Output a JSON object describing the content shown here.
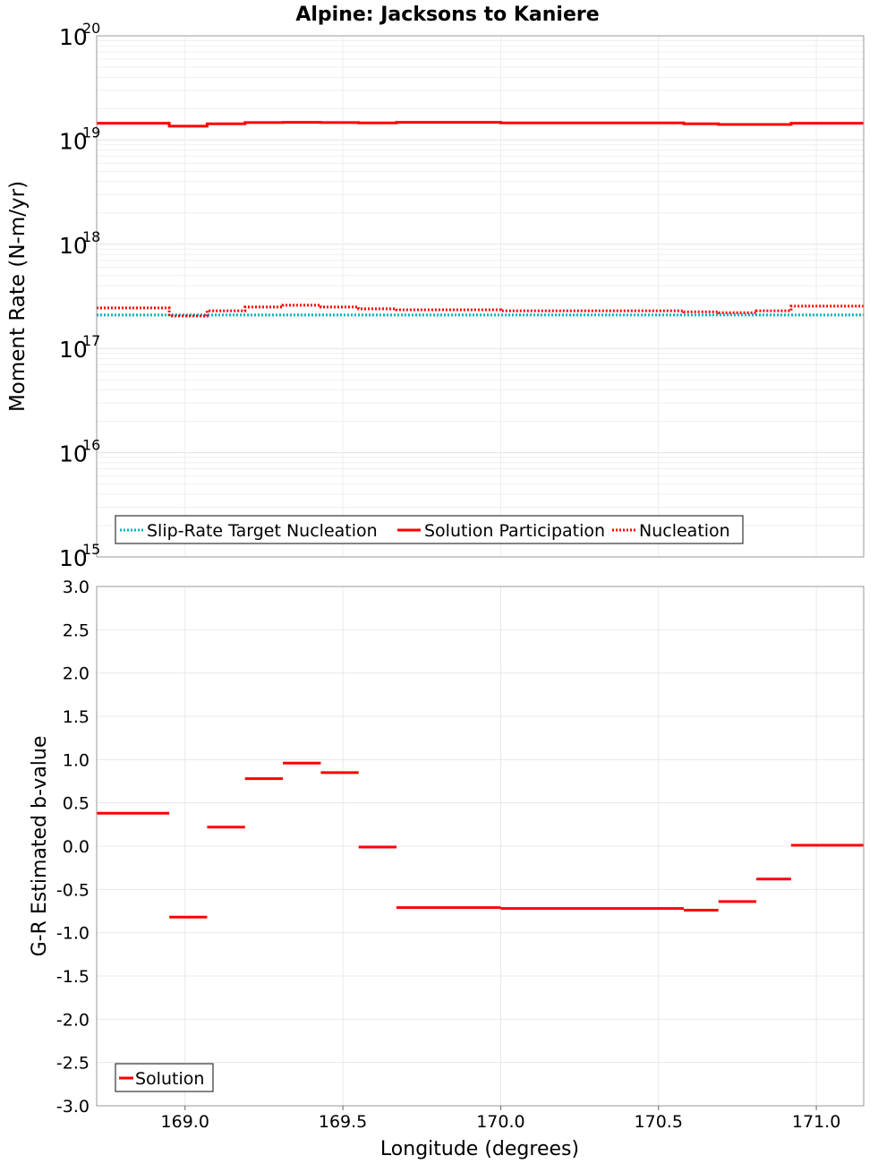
{
  "chart_data": [
    {
      "type": "line",
      "title": "Alpine: Jacksons to Kaniere",
      "xlabel": "",
      "ylabel": "Moment Rate (N-m/yr)",
      "yscale": "log",
      "ylim": [
        1000000000000000.0,
        1e+20
      ],
      "xlim": [
        168.72,
        171.15
      ],
      "y_tick_exponents": [
        "15",
        "16",
        "17",
        "18",
        "19",
        "20"
      ],
      "y_tick_base": "10",
      "grid": true,
      "legend_position": "bottom-left",
      "series": [
        {
          "name": "Slip-Rate Target Nucleation",
          "color": "#00b4c4",
          "style": "dotted",
          "segments": [
            {
              "x0": 168.72,
              "x1": 171.15,
              "y": 2.1e+17
            }
          ]
        },
        {
          "name": "Solution Participation",
          "color": "#ff0000",
          "style": "solid",
          "segments": [
            {
              "x0": 168.72,
              "x1": 168.95,
              "y": 1.45e+19
            },
            {
              "x0": 168.95,
              "x1": 169.07,
              "y": 1.36e+19
            },
            {
              "x0": 169.07,
              "x1": 169.19,
              "y": 1.43e+19
            },
            {
              "x0": 169.19,
              "x1": 169.31,
              "y": 1.47e+19
            },
            {
              "x0": 169.31,
              "x1": 169.43,
              "y": 1.48e+19
            },
            {
              "x0": 169.43,
              "x1": 169.55,
              "y": 1.47e+19
            },
            {
              "x0": 169.55,
              "x1": 169.67,
              "y": 1.46e+19
            },
            {
              "x0": 169.67,
              "x1": 170.0,
              "y": 1.48e+19
            },
            {
              "x0": 170.0,
              "x1": 170.58,
              "y": 1.46e+19
            },
            {
              "x0": 170.58,
              "x1": 170.69,
              "y": 1.43e+19
            },
            {
              "x0": 170.69,
              "x1": 170.92,
              "y": 1.41e+19
            },
            {
              "x0": 170.92,
              "x1": 171.15,
              "y": 1.45e+19
            }
          ]
        },
        {
          "name": "Nucleation",
          "color": "#ff0000",
          "style": "dotted",
          "segments": [
            {
              "x0": 168.72,
              "x1": 168.95,
              "y": 2.45e+17
            },
            {
              "x0": 168.95,
              "x1": 169.07,
              "y": 2.05e+17
            },
            {
              "x0": 169.07,
              "x1": 169.19,
              "y": 2.3e+17
            },
            {
              "x0": 169.19,
              "x1": 169.31,
              "y": 2.5e+17
            },
            {
              "x0": 169.31,
              "x1": 169.43,
              "y": 2.6e+17
            },
            {
              "x0": 169.43,
              "x1": 169.55,
              "y": 2.5e+17
            },
            {
              "x0": 169.55,
              "x1": 169.67,
              "y": 2.4e+17
            },
            {
              "x0": 169.67,
              "x1": 170.0,
              "y": 2.35e+17
            },
            {
              "x0": 170.0,
              "x1": 170.58,
              "y": 2.3e+17
            },
            {
              "x0": 170.58,
              "x1": 170.69,
              "y": 2.25e+17
            },
            {
              "x0": 170.69,
              "x1": 170.81,
              "y": 2.2e+17
            },
            {
              "x0": 170.81,
              "x1": 170.92,
              "y": 2.3e+17
            },
            {
              "x0": 170.92,
              "x1": 171.15,
              "y": 2.55e+17
            }
          ]
        }
      ]
    },
    {
      "type": "line",
      "title": "",
      "xlabel": "Longitude (degrees)",
      "ylabel": "G-R Estimated b-value",
      "ylim": [
        -3.0,
        3.0
      ],
      "xlim": [
        168.72,
        171.15
      ],
      "y_ticks": [
        -3.0,
        -2.5,
        -2.0,
        -1.5,
        -1.0,
        -0.5,
        0.0,
        0.5,
        1.0,
        1.5,
        2.0,
        2.5,
        3.0
      ],
      "y_tick_labels": [
        "-3.0",
        "-2.5",
        "-2.0",
        "-1.5",
        "-1.0",
        "-0.5",
        "0.0",
        "0.5",
        "1.0",
        "1.5",
        "2.0",
        "2.5",
        "3.0"
      ],
      "x_ticks": [
        169.0,
        169.5,
        170.0,
        170.5,
        171.0
      ],
      "x_tick_labels": [
        "169.0",
        "169.5",
        "170.0",
        "170.5",
        "171.0"
      ],
      "grid": true,
      "legend_position": "bottom-left",
      "series": [
        {
          "name": "Solution",
          "color": "#ff0000",
          "style": "solid",
          "segments": [
            {
              "x0": 168.72,
              "x1": 168.95,
              "y": 0.38
            },
            {
              "x0": 168.95,
              "x1": 169.07,
              "y": -0.82
            },
            {
              "x0": 169.07,
              "x1": 169.19,
              "y": 0.22
            },
            {
              "x0": 169.19,
              "x1": 169.31,
              "y": 0.78
            },
            {
              "x0": 169.31,
              "x1": 169.43,
              "y": 0.96
            },
            {
              "x0": 169.43,
              "x1": 169.55,
              "y": 0.85
            },
            {
              "x0": 169.55,
              "x1": 169.67,
              "y": -0.01
            },
            {
              "x0": 169.67,
              "x1": 170.0,
              "y": -0.71
            },
            {
              "x0": 170.0,
              "x1": 170.58,
              "y": -0.72
            },
            {
              "x0": 170.58,
              "x1": 170.69,
              "y": -0.74
            },
            {
              "x0": 170.69,
              "x1": 170.81,
              "y": -0.64
            },
            {
              "x0": 170.81,
              "x1": 170.92,
              "y": -0.38
            },
            {
              "x0": 170.92,
              "x1": 171.15,
              "y": 0.01
            }
          ]
        }
      ]
    }
  ]
}
